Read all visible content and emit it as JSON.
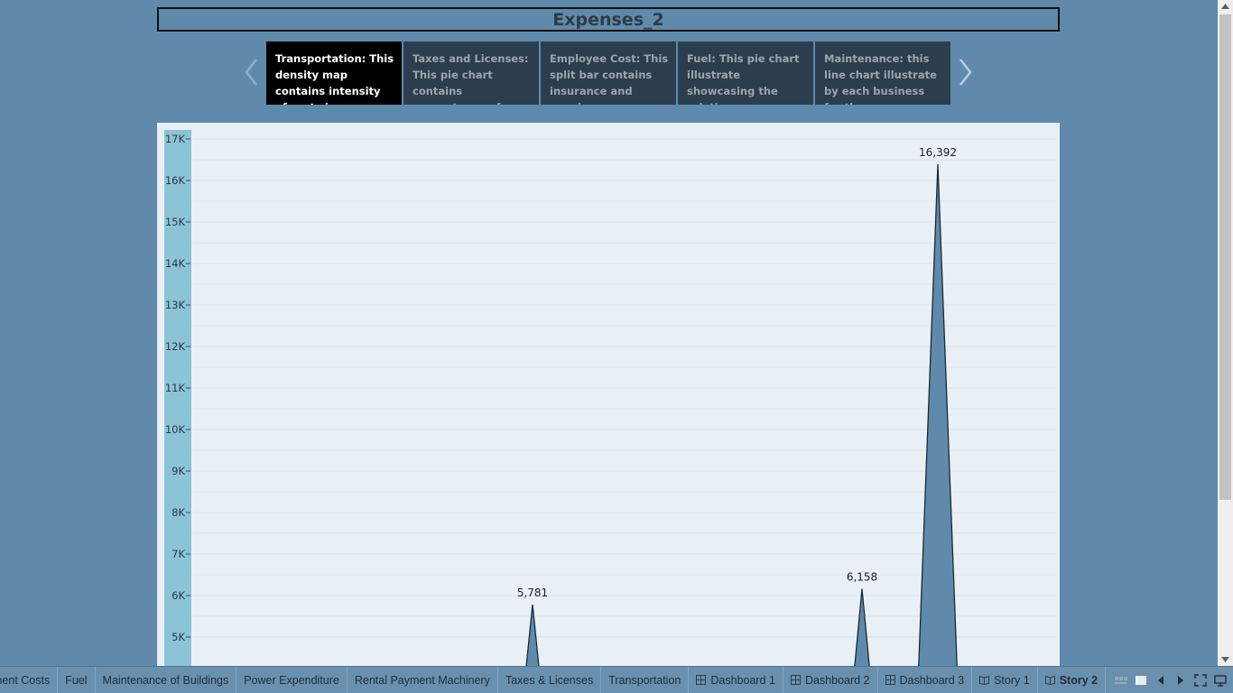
{
  "story": {
    "title": "Expenses_2"
  },
  "story_points": [
    {
      "text": "Transportation: This density map contains intensity of costs in",
      "active": true
    },
    {
      "text": "Taxes and Licenses: This pie chart contains percentages of these",
      "active": false
    },
    {
      "text": "Employee Cost: This split bar contains insurance and pension",
      "active": false
    },
    {
      "text": "Fuel: This pie chart illustrate showcasing the relative",
      "active": false
    },
    {
      "text": "Maintenance: this line chart illustrate by each business for the",
      "active": false
    }
  ],
  "nav": {
    "prev_icon": "chevron-left-icon",
    "next_icon": "chevron-right-icon"
  },
  "chart_data": {
    "type": "area",
    "y_ticks": [
      "5K",
      "6K",
      "7K",
      "8K",
      "9K",
      "10K",
      "11K",
      "12K",
      "13K",
      "14K",
      "15K",
      "16K",
      "17K"
    ],
    "peaks": [
      {
        "value": 5781,
        "label": "5,781"
      },
      {
        "value": 6158,
        "label": "6,158"
      },
      {
        "value": 16392,
        "label": "16,392"
      }
    ],
    "visible_ylim": [
      4700,
      17000
    ],
    "grid": true,
    "fill_color": "#5f8aab",
    "axis_band_color": "#8bc4d6"
  },
  "tabs": [
    {
      "label": "ment Costs",
      "icon": ""
    },
    {
      "label": "Fuel",
      "icon": ""
    },
    {
      "label": "Maintenance of Buildings",
      "icon": ""
    },
    {
      "label": "Power Expenditure",
      "icon": ""
    },
    {
      "label": "Rental Payment Machinery",
      "icon": ""
    },
    {
      "label": "Taxes & Licenses",
      "icon": ""
    },
    {
      "label": "Transportation",
      "icon": ""
    },
    {
      "label": "Dashboard 1",
      "icon": "dashboard-icon"
    },
    {
      "label": "Dashboard 2",
      "icon": "dashboard-icon"
    },
    {
      "label": "Dashboard 3",
      "icon": "dashboard-icon"
    },
    {
      "label": "Story 1",
      "icon": "story-icon"
    },
    {
      "label": "Story 2",
      "icon": "story-icon",
      "active": true
    }
  ],
  "tab_controls": [
    "filmstrip-icon",
    "single-sheet-icon",
    "prev-sheet-icon",
    "next-sheet-icon",
    "fullscreen-icon",
    "present-icon"
  ]
}
